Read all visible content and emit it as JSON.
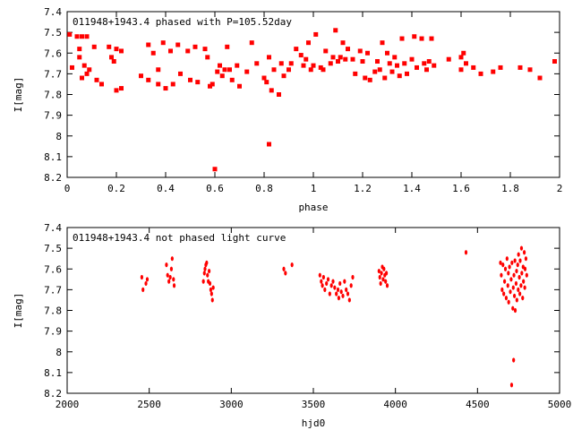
{
  "chart_data": [
    {
      "type": "scatter",
      "title": "011948+1943.4 phased with P=105.52day",
      "xlabel": "phase",
      "ylabel": "I[mag]",
      "xlim": [
        0,
        2
      ],
      "ylim": [
        7.4,
        8.2
      ],
      "y_inverted": true,
      "xticks": [
        0,
        0.2,
        0.4,
        0.6,
        0.8,
        1,
        1.2,
        1.4,
        1.6,
        1.8,
        2
      ],
      "xtick_labels": [
        "0",
        "0.2",
        "0.4",
        "0.6",
        "0.8",
        "1",
        "1.2",
        "1.4",
        "1.6",
        "1.8",
        "2"
      ],
      "yticks": [
        7.4,
        7.5,
        7.6,
        7.7,
        7.8,
        7.9,
        8.0,
        8.1,
        8.2
      ],
      "ytick_labels": [
        "7.4",
        "7.5",
        "7.6",
        "7.7",
        "7.8",
        "7.9",
        "8",
        "8.1",
        "8.2"
      ],
      "marker_color": "#ff0000",
      "grid": false,
      "points": [
        [
          0.01,
          7.51
        ],
        [
          0.02,
          7.67
        ],
        [
          0.04,
          7.52
        ],
        [
          0.05,
          7.58
        ],
        [
          0.05,
          7.62
        ],
        [
          0.06,
          7.52
        ],
        [
          0.06,
          7.72
        ],
        [
          0.07,
          7.66
        ],
        [
          0.08,
          7.52
        ],
        [
          0.08,
          7.7
        ],
        [
          0.09,
          7.68
        ],
        [
          0.11,
          7.57
        ],
        [
          0.12,
          7.73
        ],
        [
          0.14,
          7.75
        ],
        [
          0.17,
          7.57
        ],
        [
          0.18,
          7.62
        ],
        [
          0.19,
          7.64
        ],
        [
          0.2,
          7.58
        ],
        [
          0.2,
          7.78
        ],
        [
          0.22,
          7.59
        ],
        [
          0.22,
          7.77
        ],
        [
          0.3,
          7.71
        ],
        [
          0.33,
          7.56
        ],
        [
          0.33,
          7.73
        ],
        [
          0.35,
          7.6
        ],
        [
          0.37,
          7.68
        ],
        [
          0.37,
          7.75
        ],
        [
          0.39,
          7.55
        ],
        [
          0.4,
          7.77
        ],
        [
          0.42,
          7.59
        ],
        [
          0.43,
          7.75
        ],
        [
          0.45,
          7.56
        ],
        [
          0.46,
          7.7
        ],
        [
          0.49,
          7.59
        ],
        [
          0.5,
          7.73
        ],
        [
          0.52,
          7.57
        ],
        [
          0.53,
          7.74
        ],
        [
          0.56,
          7.58
        ],
        [
          0.57,
          7.62
        ],
        [
          0.58,
          7.76
        ],
        [
          0.59,
          7.75
        ],
        [
          0.6,
          8.16
        ],
        [
          0.61,
          7.69
        ],
        [
          0.62,
          7.66
        ],
        [
          0.63,
          7.71
        ],
        [
          0.64,
          7.68
        ],
        [
          0.65,
          7.57
        ],
        [
          0.66,
          7.68
        ],
        [
          0.67,
          7.73
        ],
        [
          0.69,
          7.66
        ],
        [
          0.7,
          7.76
        ],
        [
          0.73,
          7.69
        ],
        [
          0.75,
          7.55
        ],
        [
          0.77,
          7.65
        ],
        [
          0.8,
          7.72
        ],
        [
          0.81,
          7.74
        ],
        [
          0.82,
          7.62
        ],
        [
          0.82,
          8.04
        ],
        [
          0.83,
          7.78
        ],
        [
          0.84,
          7.68
        ],
        [
          0.86,
          7.8
        ],
        [
          0.87,
          7.65
        ],
        [
          0.88,
          7.71
        ],
        [
          0.9,
          7.68
        ],
        [
          0.91,
          7.65
        ],
        [
          0.93,
          7.58
        ],
        [
          0.95,
          7.61
        ],
        [
          0.96,
          7.66
        ],
        [
          0.97,
          7.63
        ],
        [
          0.98,
          7.55
        ],
        [
          0.99,
          7.68
        ],
        [
          1.0,
          7.66
        ],
        [
          1.01,
          7.51
        ],
        [
          1.03,
          7.67
        ],
        [
          1.04,
          7.68
        ],
        [
          1.05,
          7.59
        ],
        [
          1.07,
          7.65
        ],
        [
          1.08,
          7.62
        ],
        [
          1.09,
          7.49
        ],
        [
          1.1,
          7.64
        ],
        [
          1.11,
          7.62
        ],
        [
          1.12,
          7.55
        ],
        [
          1.13,
          7.63
        ],
        [
          1.14,
          7.58
        ],
        [
          1.16,
          7.63
        ],
        [
          1.17,
          7.7
        ],
        [
          1.19,
          7.59
        ],
        [
          1.2,
          7.64
        ],
        [
          1.21,
          7.72
        ],
        [
          1.22,
          7.6
        ],
        [
          1.23,
          7.73
        ],
        [
          1.25,
          7.69
        ],
        [
          1.26,
          7.64
        ],
        [
          1.27,
          7.68
        ],
        [
          1.28,
          7.55
        ],
        [
          1.29,
          7.72
        ],
        [
          1.3,
          7.6
        ],
        [
          1.31,
          7.65
        ],
        [
          1.32,
          7.69
        ],
        [
          1.33,
          7.62
        ],
        [
          1.34,
          7.66
        ],
        [
          1.35,
          7.71
        ],
        [
          1.36,
          7.53
        ],
        [
          1.37,
          7.65
        ],
        [
          1.38,
          7.7
        ],
        [
          1.4,
          7.63
        ],
        [
          1.41,
          7.52
        ],
        [
          1.42,
          7.67
        ],
        [
          1.44,
          7.53
        ],
        [
          1.45,
          7.65
        ],
        [
          1.46,
          7.68
        ],
        [
          1.47,
          7.64
        ],
        [
          1.48,
          7.53
        ],
        [
          1.49,
          7.66
        ],
        [
          1.55,
          7.63
        ],
        [
          1.6,
          7.62
        ],
        [
          1.6,
          7.68
        ],
        [
          1.61,
          7.6
        ],
        [
          1.62,
          7.65
        ],
        [
          1.65,
          7.67
        ],
        [
          1.68,
          7.7
        ],
        [
          1.73,
          7.69
        ],
        [
          1.76,
          7.67
        ],
        [
          1.84,
          7.67
        ],
        [
          1.88,
          7.68
        ],
        [
          1.92,
          7.72
        ],
        [
          1.98,
          7.64
        ]
      ]
    },
    {
      "type": "scatter",
      "title": "011948+1943.4 not phased light curve",
      "xlabel": "hjd0",
      "ylabel": "I[mag]",
      "xlim": [
        2000,
        5000
      ],
      "ylim": [
        7.4,
        8.2
      ],
      "y_inverted": true,
      "xticks": [
        2000,
        2500,
        3000,
        3500,
        4000,
        4500,
        5000
      ],
      "xtick_labels": [
        "2000",
        "2500",
        "3000",
        "3500",
        "4000",
        "4500",
        "5000"
      ],
      "yticks": [
        7.4,
        7.5,
        7.6,
        7.7,
        7.8,
        7.9,
        8.0,
        8.1,
        8.2
      ],
      "ytick_labels": [
        "7.4",
        "7.5",
        "7.6",
        "7.7",
        "7.8",
        "7.9",
        "8",
        "8.1",
        "8.2"
      ],
      "marker_color": "#ff0000",
      "grid": false,
      "points": [
        [
          2455,
          7.64
        ],
        [
          2462,
          7.7
        ],
        [
          2480,
          7.67
        ],
        [
          2488,
          7.65
        ],
        [
          2605,
          7.58
        ],
        [
          2612,
          7.63
        ],
        [
          2620,
          7.66
        ],
        [
          2628,
          7.64
        ],
        [
          2635,
          7.6
        ],
        [
          2640,
          7.55
        ],
        [
          2648,
          7.65
        ],
        [
          2652,
          7.68
        ],
        [
          2830,
          7.66
        ],
        [
          2836,
          7.62
        ],
        [
          2840,
          7.6
        ],
        [
          2845,
          7.58
        ],
        [
          2850,
          7.57
        ],
        [
          2855,
          7.63
        ],
        [
          2860,
          7.66
        ],
        [
          2865,
          7.61
        ],
        [
          2870,
          7.67
        ],
        [
          2875,
          7.7
        ],
        [
          2880,
          7.72
        ],
        [
          2885,
          7.75
        ],
        [
          2890,
          7.69
        ],
        [
          3320,
          7.6
        ],
        [
          3330,
          7.62
        ],
        [
          3370,
          7.58
        ],
        [
          3540,
          7.63
        ],
        [
          3548,
          7.66
        ],
        [
          3555,
          7.68
        ],
        [
          3562,
          7.64
        ],
        [
          3570,
          7.7
        ],
        [
          3580,
          7.67
        ],
        [
          3590,
          7.65
        ],
        [
          3600,
          7.72
        ],
        [
          3610,
          7.68
        ],
        [
          3620,
          7.66
        ],
        [
          3630,
          7.69
        ],
        [
          3640,
          7.72
        ],
        [
          3650,
          7.7
        ],
        [
          3655,
          7.74
        ],
        [
          3662,
          7.67
        ],
        [
          3670,
          7.71
        ],
        [
          3680,
          7.73
        ],
        [
          3690,
          7.66
        ],
        [
          3700,
          7.7
        ],
        [
          3710,
          7.72
        ],
        [
          3720,
          7.75
        ],
        [
          3730,
          7.68
        ],
        [
          3740,
          7.64
        ],
        [
          3900,
          7.61
        ],
        [
          3905,
          7.64
        ],
        [
          3910,
          7.67
        ],
        [
          3915,
          7.62
        ],
        [
          3920,
          7.59
        ],
        [
          3925,
          7.65
        ],
        [
          3930,
          7.6
        ],
        [
          3935,
          7.63
        ],
        [
          3940,
          7.66
        ],
        [
          3945,
          7.62
        ],
        [
          3950,
          7.68
        ],
        [
          4430,
          7.52
        ],
        [
          4640,
          7.57
        ],
        [
          4645,
          7.63
        ],
        [
          4650,
          7.7
        ],
        [
          4655,
          7.58
        ],
        [
          4660,
          7.72
        ],
        [
          4665,
          7.66
        ],
        [
          4670,
          7.6
        ],
        [
          4675,
          7.74
        ],
        [
          4680,
          7.55
        ],
        [
          4685,
          7.68
        ],
        [
          4688,
          7.62
        ],
        [
          4690,
          7.76
        ],
        [
          4695,
          7.59
        ],
        [
          4700,
          7.71
        ],
        [
          4705,
          7.65
        ],
        [
          4708,
          8.16
        ],
        [
          4710,
          7.57
        ],
        [
          4715,
          7.79
        ],
        [
          4718,
          7.69
        ],
        [
          4720,
          8.04
        ],
        [
          4722,
          7.63
        ],
        [
          4725,
          7.73
        ],
        [
          4728,
          7.56
        ],
        [
          4730,
          7.8
        ],
        [
          4735,
          7.67
        ],
        [
          4738,
          7.61
        ],
        [
          4740,
          7.75
        ],
        [
          4745,
          7.58
        ],
        [
          4748,
          7.7
        ],
        [
          4750,
          7.53
        ],
        [
          4755,
          7.64
        ],
        [
          4758,
          7.72
        ],
        [
          4760,
          7.56
        ],
        [
          4765,
          7.68
        ],
        [
          4768,
          7.5
        ],
        [
          4770,
          7.62
        ],
        [
          4775,
          7.74
        ],
        [
          4778,
          7.59
        ],
        [
          4780,
          7.66
        ],
        [
          4785,
          7.52
        ],
        [
          4788,
          7.69
        ],
        [
          4790,
          7.6
        ],
        [
          4795,
          7.55
        ],
        [
          4800,
          7.63
        ]
      ]
    }
  ]
}
